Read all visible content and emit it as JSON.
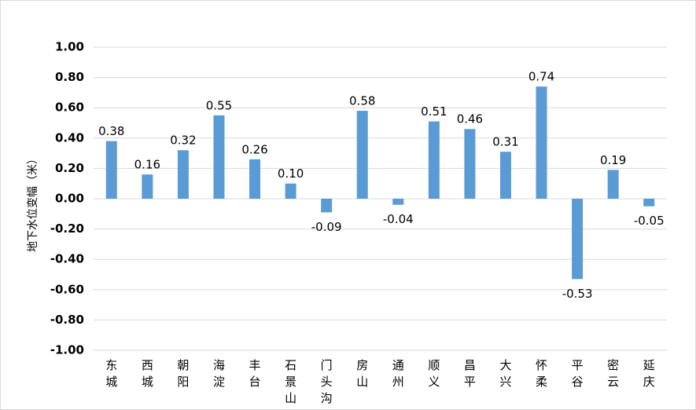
{
  "chart_data": {
    "type": "bar",
    "title": "",
    "xlabel": "",
    "ylabel": "地下水位变幅（米）",
    "ylim": [
      -1.0,
      1.0
    ],
    "yticks": [
      "1.00",
      "0.80",
      "0.60",
      "0.40",
      "0.20",
      "0.00",
      "-0.20",
      "-0.40",
      "-0.60",
      "-0.80",
      "-1.00"
    ],
    "categories": [
      "东城",
      "西城",
      "朝阳",
      "海淀",
      "丰台",
      "石景山",
      "门头沟",
      "房山",
      "通州",
      "顺义",
      "昌平",
      "大兴",
      "怀柔",
      "平谷",
      "密云",
      "延庆"
    ],
    "values": [
      0.38,
      0.16,
      0.32,
      0.55,
      0.26,
      0.1,
      -0.09,
      0.58,
      -0.04,
      0.51,
      0.46,
      0.31,
      0.74,
      -0.53,
      0.19,
      -0.05
    ],
    "data_labels": [
      "0.38",
      "0.16",
      "0.32",
      "0.55",
      "0.26",
      "0.10",
      "-0.09",
      "0.58",
      "-0.04",
      "0.51",
      "0.46",
      "0.31",
      "0.74",
      "-0.53",
      "0.19",
      "-0.05"
    ],
    "grid": true,
    "legend": "none",
    "bar_color": "#5b9bd5"
  }
}
